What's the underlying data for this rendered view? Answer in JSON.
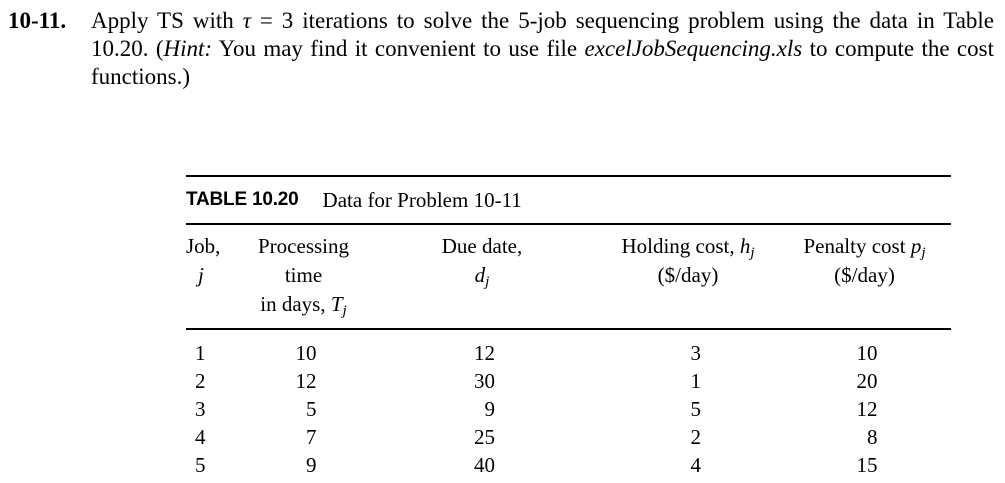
{
  "problem": {
    "number": "10-11.",
    "seg1": "Apply TS with ",
    "tau": "τ",
    "seg2": " = 3 iterations to solve the 5-job sequencing problem using the data in Table 10.20. (",
    "hint": "Hint:",
    "seg3": " You may find it convenient to use file ",
    "filename": "excelJobSequencing.xls",
    "seg4": " to compute the cost functions.)"
  },
  "table": {
    "caption_label": "TABLE 10.20",
    "caption_title": "Data for Problem 10-11",
    "columns": [
      {
        "title": "Job,",
        "symbol": "j"
      },
      {
        "title": "Processing time",
        "line2_prefix": "in days, ",
        "symbol": "T",
        "subscript": "j"
      },
      {
        "title": "Due date,",
        "symbol": "d",
        "subscript": "j"
      },
      {
        "title": "Holding cost, ",
        "symbol": "h",
        "subscript": "j",
        "units": "($/day)"
      },
      {
        "title": "Penalty cost ",
        "symbol": "p",
        "subscript": "j",
        "units": "($/day)"
      }
    ],
    "rows": [
      [
        "1",
        "10",
        "12",
        "3",
        "10"
      ],
      [
        "2",
        "12",
        "30",
        "1",
        "20"
      ],
      [
        "3",
        "5",
        "9",
        "5",
        "12"
      ],
      [
        "4",
        "7",
        "25",
        "2",
        "8"
      ],
      [
        "5",
        "9",
        "40",
        "4",
        "15"
      ]
    ]
  }
}
